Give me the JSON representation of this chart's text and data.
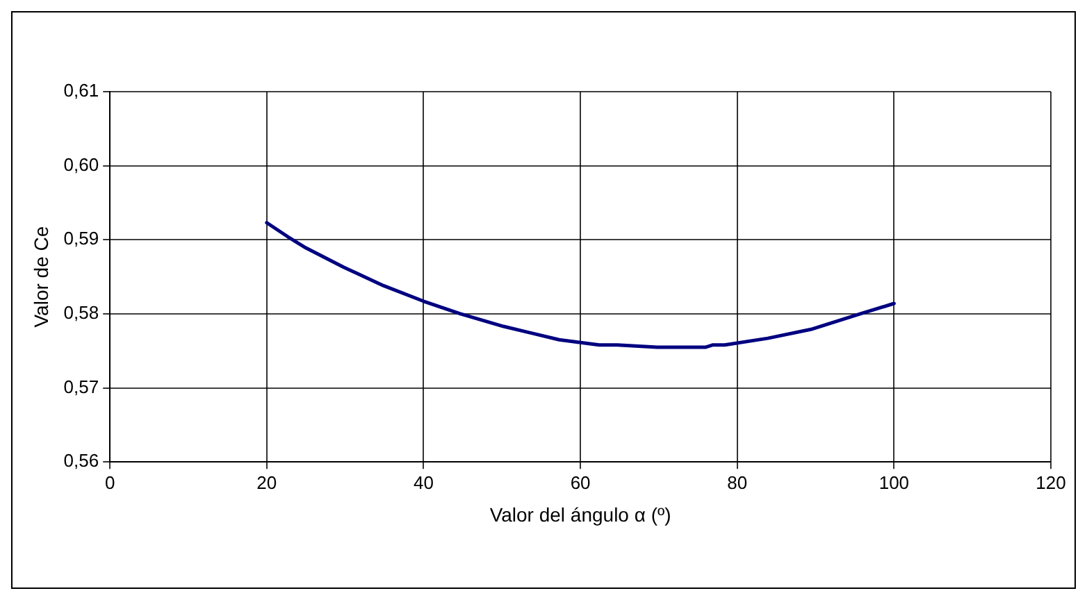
{
  "chart_data": {
    "type": "line",
    "xlabel": "Valor del ángulo α (º)",
    "ylabel": "Valor de Ce",
    "x": [
      20,
      22.7,
      25,
      29.8,
      34.9,
      40,
      44.7,
      50.2,
      57.3,
      62.4,
      64.7,
      69.8,
      76,
      76.9,
      78.4,
      83.9,
      89.4,
      95.7,
      100
    ],
    "series": [
      {
        "color": "#000080",
        "values": [
          0.5923,
          0.5904,
          0.5889,
          0.5863,
          0.5838,
          0.5817,
          0.58,
          0.5783,
          0.5765,
          0.5758,
          0.5758,
          0.5755,
          0.5755,
          0.5758,
          0.5758,
          0.5767,
          0.5779,
          0.58,
          0.5814
        ]
      }
    ],
    "xlim": [
      0,
      120
    ],
    "xticks": [
      0,
      20,
      40,
      60,
      80,
      100,
      120
    ],
    "ylim": [
      0.56,
      0.61
    ],
    "yticks": [
      {
        "value": 0.56,
        "label": "0,56"
      },
      {
        "value": 0.57,
        "label": "0,57"
      },
      {
        "value": 0.58,
        "label": "0,58"
      },
      {
        "value": 0.59,
        "label": "0,59"
      },
      {
        "value": 0.6,
        "label": "0,60"
      },
      {
        "value": 0.61,
        "label": "0,61"
      }
    ],
    "grid": true,
    "legend": false,
    "marker": "none",
    "line_style": "solid"
  }
}
